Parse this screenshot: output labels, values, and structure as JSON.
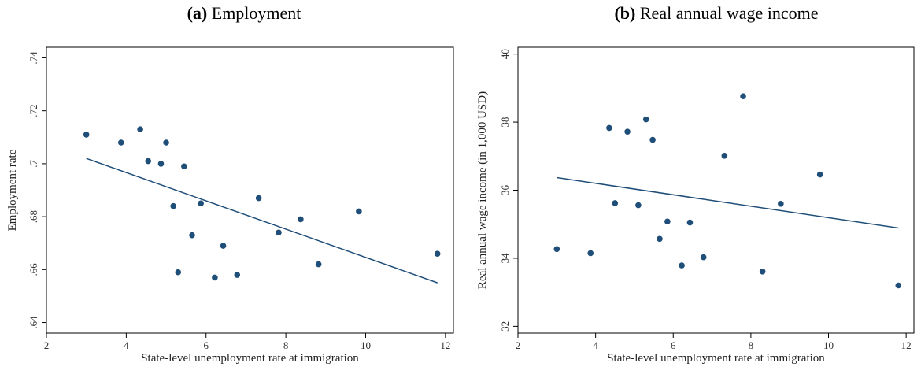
{
  "chart_data": [
    {
      "type": "scatter",
      "panel_tag": "(a)",
      "title": "Employment",
      "xlabel": "State-level unemployment rate at immigration",
      "ylabel": "Employment rate",
      "xlim": [
        2,
        12.2
      ],
      "ylim": [
        0.636,
        0.744
      ],
      "xticks": [
        2,
        4,
        6,
        8,
        10,
        12
      ],
      "xtick_labels": [
        "2",
        "4",
        "6",
        "8",
        "10",
        "12"
      ],
      "yticks": [
        0.64,
        0.66,
        0.68,
        0.7,
        0.72,
        0.74
      ],
      "ytick_labels": [
        ".64",
        ".66",
        ".68",
        ".7",
        ".72",
        ".74"
      ],
      "grid": false,
      "colors": {
        "points": "#1f4e79",
        "fit_line": "#1f4e79"
      },
      "points": [
        {
          "x": 3.0,
          "y": 0.711
        },
        {
          "x": 3.87,
          "y": 0.708
        },
        {
          "x": 4.35,
          "y": 0.713
        },
        {
          "x": 4.55,
          "y": 0.701
        },
        {
          "x": 4.87,
          "y": 0.7
        },
        {
          "x": 5.0,
          "y": 0.708
        },
        {
          "x": 5.18,
          "y": 0.684
        },
        {
          "x": 5.3,
          "y": 0.659
        },
        {
          "x": 5.45,
          "y": 0.699
        },
        {
          "x": 5.65,
          "y": 0.673
        },
        {
          "x": 5.87,
          "y": 0.685
        },
        {
          "x": 6.22,
          "y": 0.657
        },
        {
          "x": 6.43,
          "y": 0.669
        },
        {
          "x": 6.78,
          "y": 0.658
        },
        {
          "x": 7.32,
          "y": 0.687
        },
        {
          "x": 7.82,
          "y": 0.674
        },
        {
          "x": 8.37,
          "y": 0.679
        },
        {
          "x": 8.82,
          "y": 0.662
        },
        {
          "x": 9.83,
          "y": 0.682
        },
        {
          "x": 11.8,
          "y": 0.666
        }
      ],
      "fit_line": [
        {
          "x": 3.0,
          "y": 0.702
        },
        {
          "x": 11.8,
          "y": 0.655
        }
      ]
    },
    {
      "type": "scatter",
      "panel_tag": "(b)",
      "title": "Real annual wage income",
      "xlabel": "State-level unemployment rate at immigration",
      "ylabel": "Real annual wage income (in 1,000 USD)",
      "xlim": [
        2,
        12.2
      ],
      "ylim": [
        31.8,
        40.2
      ],
      "xticks": [
        2,
        4,
        6,
        8,
        10,
        12
      ],
      "xtick_labels": [
        "2",
        "4",
        "6",
        "8",
        "10",
        "12"
      ],
      "yticks": [
        32,
        34,
        36,
        38,
        40
      ],
      "ytick_labels": [
        "32",
        "34",
        "36",
        "38",
        "40"
      ],
      "grid": false,
      "colors": {
        "points": "#1f4e79",
        "fit_line": "#1f4e79"
      },
      "points": [
        {
          "x": 3.0,
          "y": 34.27
        },
        {
          "x": 3.87,
          "y": 34.15
        },
        {
          "x": 4.35,
          "y": 37.83
        },
        {
          "x": 4.5,
          "y": 35.62
        },
        {
          "x": 4.82,
          "y": 37.72
        },
        {
          "x": 5.1,
          "y": 35.56
        },
        {
          "x": 5.3,
          "y": 38.08
        },
        {
          "x": 5.47,
          "y": 37.48
        },
        {
          "x": 5.65,
          "y": 34.57
        },
        {
          "x": 5.85,
          "y": 35.08
        },
        {
          "x": 6.22,
          "y": 33.79
        },
        {
          "x": 6.43,
          "y": 35.05
        },
        {
          "x": 6.78,
          "y": 34.03
        },
        {
          "x": 7.32,
          "y": 37.01
        },
        {
          "x": 7.8,
          "y": 38.76
        },
        {
          "x": 8.3,
          "y": 33.61
        },
        {
          "x": 8.77,
          "y": 35.6
        },
        {
          "x": 9.78,
          "y": 36.46
        },
        {
          "x": 11.8,
          "y": 33.2
        }
      ],
      "fit_line": [
        {
          "x": 3.0,
          "y": 36.37
        },
        {
          "x": 11.8,
          "y": 34.89
        }
      ]
    }
  ]
}
